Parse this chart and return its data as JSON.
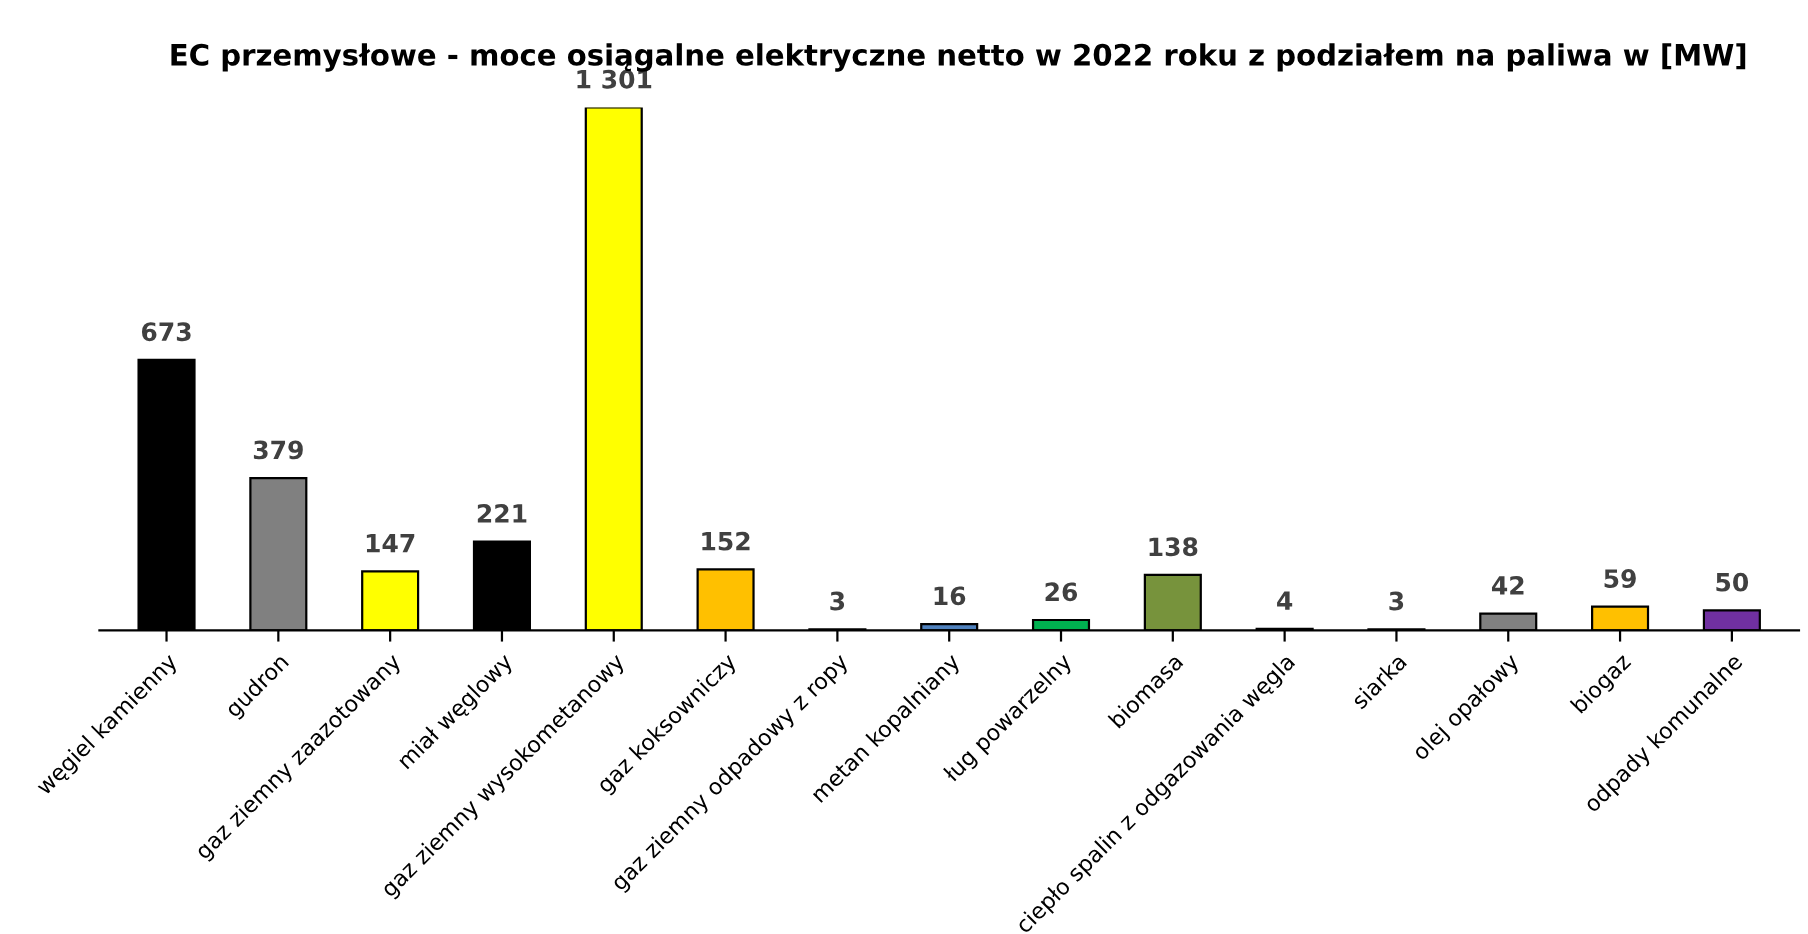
{
  "chart_data": {
    "type": "bar",
    "title": "EC przemysłowe - moce osiągalne elektryczne netto w 2022 roku z podziałem na paliwa w [MW]",
    "categories": [
      "węgiel kamienny",
      "gudron",
      "gaz ziemny zaazotowany",
      "miał węglowy",
      "gaz ziemny wysokometanowy",
      "gaz koksowniczy",
      "gaz ziemny odpadowy z ropy",
      "metan kopalniany",
      "ług powarzelny",
      "biomasa",
      "ciepło spalin z odgazowania węgla",
      "siarka",
      "olej opałowy",
      "biogaz",
      "odpady komunalne"
    ],
    "values": [
      673,
      379,
      147,
      221,
      1301,
      152,
      3,
      16,
      26,
      138,
      4,
      3,
      42,
      59,
      50
    ],
    "value_labels": [
      "673",
      "379",
      "147",
      "221",
      "1 301",
      "152",
      "3",
      "16",
      "26",
      "138",
      "4",
      "3",
      "42",
      "59",
      "50"
    ],
    "colors": [
      "#000000",
      "#808080",
      "#ffff00",
      "#000000",
      "#ffff00",
      "#ffc000",
      "#7f7f7f",
      "#4f81bd",
      "#00b050",
      "#77933c",
      "#404040",
      "#a0a0a0",
      "#808080",
      "#ffc000",
      "#7030a0"
    ],
    "grid": false,
    "legend": false
  }
}
